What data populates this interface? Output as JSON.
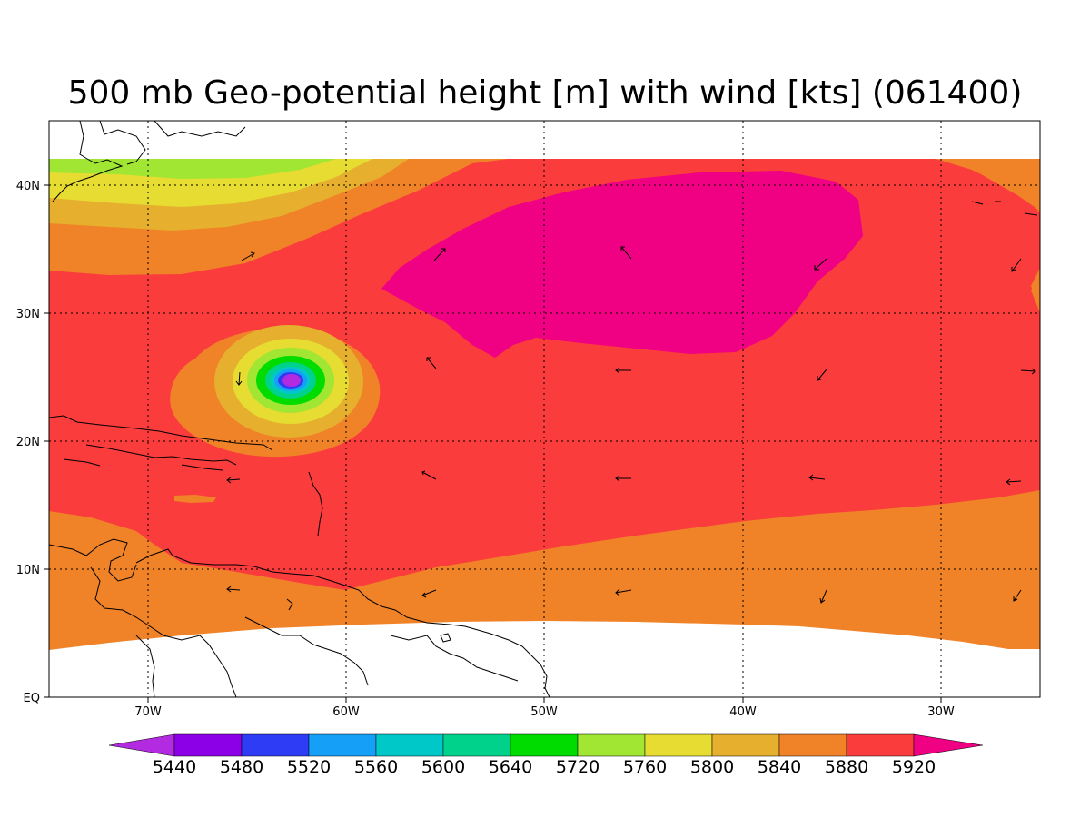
{
  "title": "500 mb Geo-potential height [m] with wind [kts] (061400)",
  "colors": {
    "background": "#ffffff",
    "contour_fills": {
      "below_5440": "#b32be0",
      "5440": "#8b00e6",
      "5480": "#2f3cf5",
      "5520": "#169ff7",
      "5560": "#00c8c8",
      "5600": "#00d28c",
      "5640": "#00dc00",
      "5720": "#a0e632",
      "5760": "#e6dc32",
      "5800": "#e6af2d",
      "5840": "#f08228",
      "5880": "#fa3c3c",
      "5920": "#f00082"
    }
  },
  "axes": {
    "x_ticks": [
      "70W",
      "60W",
      "50W",
      "40W",
      "30W"
    ],
    "y_ticks": [
      "EQ",
      "10N",
      "20N",
      "30N",
      "40N"
    ]
  },
  "colorbar": {
    "labels": [
      "5440",
      "5480",
      "5520",
      "5560",
      "5600",
      "5640",
      "5720",
      "5760",
      "5800",
      "5840",
      "5880",
      "5920"
    ]
  },
  "map_features": {
    "low_center": "Low centre near 25N 63W",
    "high_center": "High centre near 35N 42W"
  }
}
